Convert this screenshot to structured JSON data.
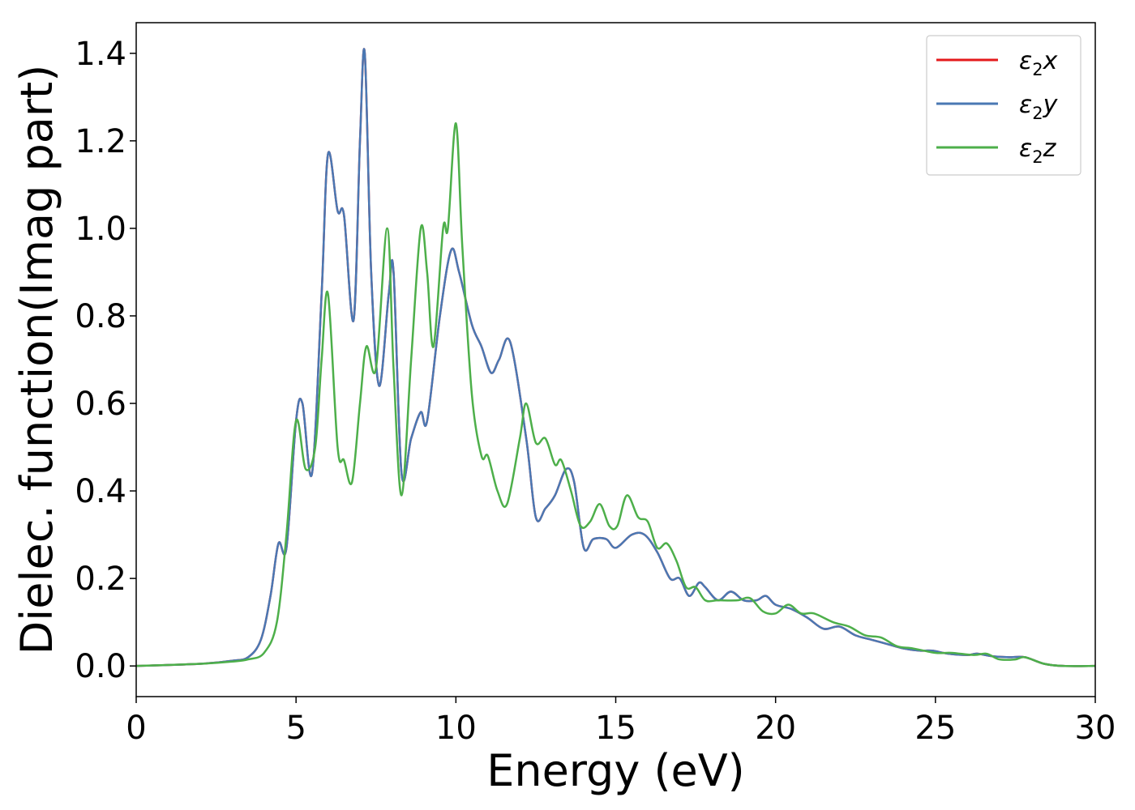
{
  "chart_data": {
    "type": "line",
    "title": "",
    "xlabel": "Energy (eV)",
    "ylabel": "Dielec. function(Imag part)",
    "xlim": [
      0,
      30
    ],
    "ylim": [
      -0.07,
      1.47
    ],
    "xticks": [
      0,
      5,
      10,
      15,
      20,
      25,
      30
    ],
    "xtick_labels": [
      "0",
      "5",
      "10",
      "15",
      "20",
      "25",
      "30"
    ],
    "yticks": [
      0.0,
      0.2,
      0.4,
      0.6,
      0.8,
      1.0,
      1.2,
      1.4
    ],
    "ytick_labels": [
      "0.0",
      "0.2",
      "0.4",
      "0.6",
      "0.8",
      "1.0",
      "1.2",
      "1.4"
    ],
    "grid": false,
    "legend_position": "top-right",
    "legend": [
      {
        "series": "ε2x",
        "base": "ε",
        "sub": "2",
        "suffix": "x",
        "color": "#e41a1c"
      },
      {
        "series": "ε2y",
        "base": "ε",
        "sub": "2",
        "suffix": "y",
        "color": "#4a78b3"
      },
      {
        "series": "ε2z",
        "base": "ε",
        "sub": "2",
        "suffix": "z",
        "color": "#4daf4a"
      }
    ],
    "series": [
      {
        "name": "ε2x",
        "color": "#e41a1c",
        "x": [
          0,
          2,
          3,
          3.5,
          3.9,
          4.2,
          4.45,
          4.7,
          5.0,
          5.2,
          5.5,
          5.8,
          6.0,
          6.3,
          6.5,
          6.8,
          7.0,
          7.15,
          7.35,
          7.6,
          7.9,
          8.05,
          8.3,
          8.6,
          8.9,
          9.1,
          9.5,
          9.85,
          10.1,
          10.5,
          10.8,
          11.1,
          11.35,
          11.7,
          12.2,
          12.5,
          12.8,
          13.1,
          13.45,
          13.7,
          14.0,
          14.3,
          14.7,
          15.0,
          15.5,
          15.9,
          16.3,
          16.7,
          17.0,
          17.3,
          17.6,
          17.8,
          18.2,
          18.6,
          19.0,
          19.4,
          19.7,
          20.0,
          20.5,
          21.0,
          21.5,
          22.0,
          22.5,
          23.0,
          23.5,
          24.0,
          24.5,
          24.9,
          25.4,
          26.0,
          26.3,
          26.8,
          27.3,
          27.8,
          28.4,
          29.0,
          30.0
        ],
        "y": [
          0.0,
          0.005,
          0.012,
          0.02,
          0.06,
          0.16,
          0.28,
          0.27,
          0.56,
          0.6,
          0.44,
          0.85,
          1.17,
          1.04,
          1.03,
          0.79,
          1.2,
          1.4,
          0.9,
          0.64,
          0.85,
          0.9,
          0.44,
          0.52,
          0.58,
          0.56,
          0.8,
          0.95,
          0.9,
          0.78,
          0.73,
          0.67,
          0.7,
          0.74,
          0.52,
          0.34,
          0.36,
          0.39,
          0.45,
          0.42,
          0.27,
          0.29,
          0.29,
          0.27,
          0.3,
          0.3,
          0.26,
          0.2,
          0.2,
          0.16,
          0.19,
          0.18,
          0.15,
          0.17,
          0.15,
          0.15,
          0.16,
          0.14,
          0.13,
          0.11,
          0.085,
          0.09,
          0.07,
          0.06,
          0.05,
          0.04,
          0.035,
          0.035,
          0.028,
          0.025,
          0.028,
          0.022,
          0.02,
          0.02,
          0.005,
          0.0,
          0.0
        ]
      },
      {
        "name": "ε2y",
        "color": "#4a78b3",
        "x": [
          0,
          2,
          3,
          3.5,
          3.9,
          4.2,
          4.45,
          4.7,
          5.0,
          5.2,
          5.5,
          5.8,
          6.0,
          6.3,
          6.5,
          6.8,
          7.0,
          7.15,
          7.35,
          7.6,
          7.9,
          8.05,
          8.3,
          8.6,
          8.9,
          9.1,
          9.5,
          9.85,
          10.1,
          10.5,
          10.8,
          11.1,
          11.35,
          11.7,
          12.2,
          12.5,
          12.8,
          13.1,
          13.45,
          13.7,
          14.0,
          14.3,
          14.7,
          15.0,
          15.5,
          15.9,
          16.3,
          16.7,
          17.0,
          17.3,
          17.6,
          17.8,
          18.2,
          18.6,
          19.0,
          19.4,
          19.7,
          20.0,
          20.5,
          21.0,
          21.5,
          22.0,
          22.5,
          23.0,
          23.5,
          24.0,
          24.5,
          24.9,
          25.4,
          26.0,
          26.3,
          26.8,
          27.3,
          27.8,
          28.4,
          29.0,
          30.0
        ],
        "y": [
          0.0,
          0.005,
          0.012,
          0.02,
          0.06,
          0.16,
          0.28,
          0.27,
          0.56,
          0.6,
          0.44,
          0.85,
          1.17,
          1.04,
          1.03,
          0.79,
          1.2,
          1.4,
          0.9,
          0.64,
          0.85,
          0.9,
          0.44,
          0.52,
          0.58,
          0.56,
          0.8,
          0.95,
          0.9,
          0.78,
          0.73,
          0.67,
          0.7,
          0.74,
          0.52,
          0.34,
          0.36,
          0.39,
          0.45,
          0.42,
          0.27,
          0.29,
          0.29,
          0.27,
          0.3,
          0.3,
          0.26,
          0.2,
          0.2,
          0.16,
          0.19,
          0.18,
          0.15,
          0.17,
          0.15,
          0.15,
          0.16,
          0.14,
          0.13,
          0.11,
          0.085,
          0.09,
          0.07,
          0.06,
          0.05,
          0.04,
          0.035,
          0.035,
          0.028,
          0.025,
          0.028,
          0.022,
          0.02,
          0.02,
          0.005,
          0.0,
          0.0
        ]
      },
      {
        "name": "ε2z",
        "color": "#4daf4a",
        "x": [
          0,
          2,
          3,
          3.5,
          4.0,
          4.4,
          4.7,
          5.0,
          5.3,
          5.6,
          5.8,
          6.0,
          6.3,
          6.5,
          6.75,
          7.0,
          7.2,
          7.5,
          7.85,
          8.05,
          8.3,
          8.6,
          8.9,
          9.1,
          9.3,
          9.6,
          9.75,
          10.0,
          10.2,
          10.5,
          10.8,
          11.0,
          11.3,
          11.6,
          12.0,
          12.2,
          12.5,
          12.8,
          13.1,
          13.3,
          13.6,
          13.9,
          14.2,
          14.5,
          14.8,
          15.05,
          15.35,
          15.7,
          16.0,
          16.3,
          16.6,
          16.9,
          17.2,
          17.5,
          17.8,
          18.2,
          18.8,
          19.2,
          19.6,
          20.0,
          20.4,
          20.8,
          21.2,
          21.8,
          22.3,
          22.8,
          23.3,
          23.8,
          24.3,
          25.0,
          25.5,
          26.2,
          26.6,
          27.0,
          27.5,
          27.8,
          28.4,
          29.0,
          30.0
        ],
        "y": [
          0.0,
          0.005,
          0.01,
          0.015,
          0.03,
          0.1,
          0.3,
          0.56,
          0.45,
          0.5,
          0.7,
          0.85,
          0.5,
          0.47,
          0.42,
          0.6,
          0.73,
          0.68,
          1.0,
          0.68,
          0.39,
          0.7,
          1.0,
          0.9,
          0.73,
          1.0,
          1.0,
          1.24,
          0.96,
          0.62,
          0.48,
          0.48,
          0.4,
          0.37,
          0.52,
          0.6,
          0.51,
          0.52,
          0.46,
          0.47,
          0.4,
          0.32,
          0.33,
          0.37,
          0.32,
          0.32,
          0.39,
          0.34,
          0.33,
          0.27,
          0.28,
          0.24,
          0.18,
          0.18,
          0.15,
          0.15,
          0.15,
          0.155,
          0.125,
          0.12,
          0.14,
          0.12,
          0.12,
          0.1,
          0.09,
          0.07,
          0.065,
          0.045,
          0.04,
          0.03,
          0.03,
          0.025,
          0.028,
          0.015,
          0.015,
          0.02,
          0.005,
          0.0,
          0.0
        ]
      }
    ]
  }
}
